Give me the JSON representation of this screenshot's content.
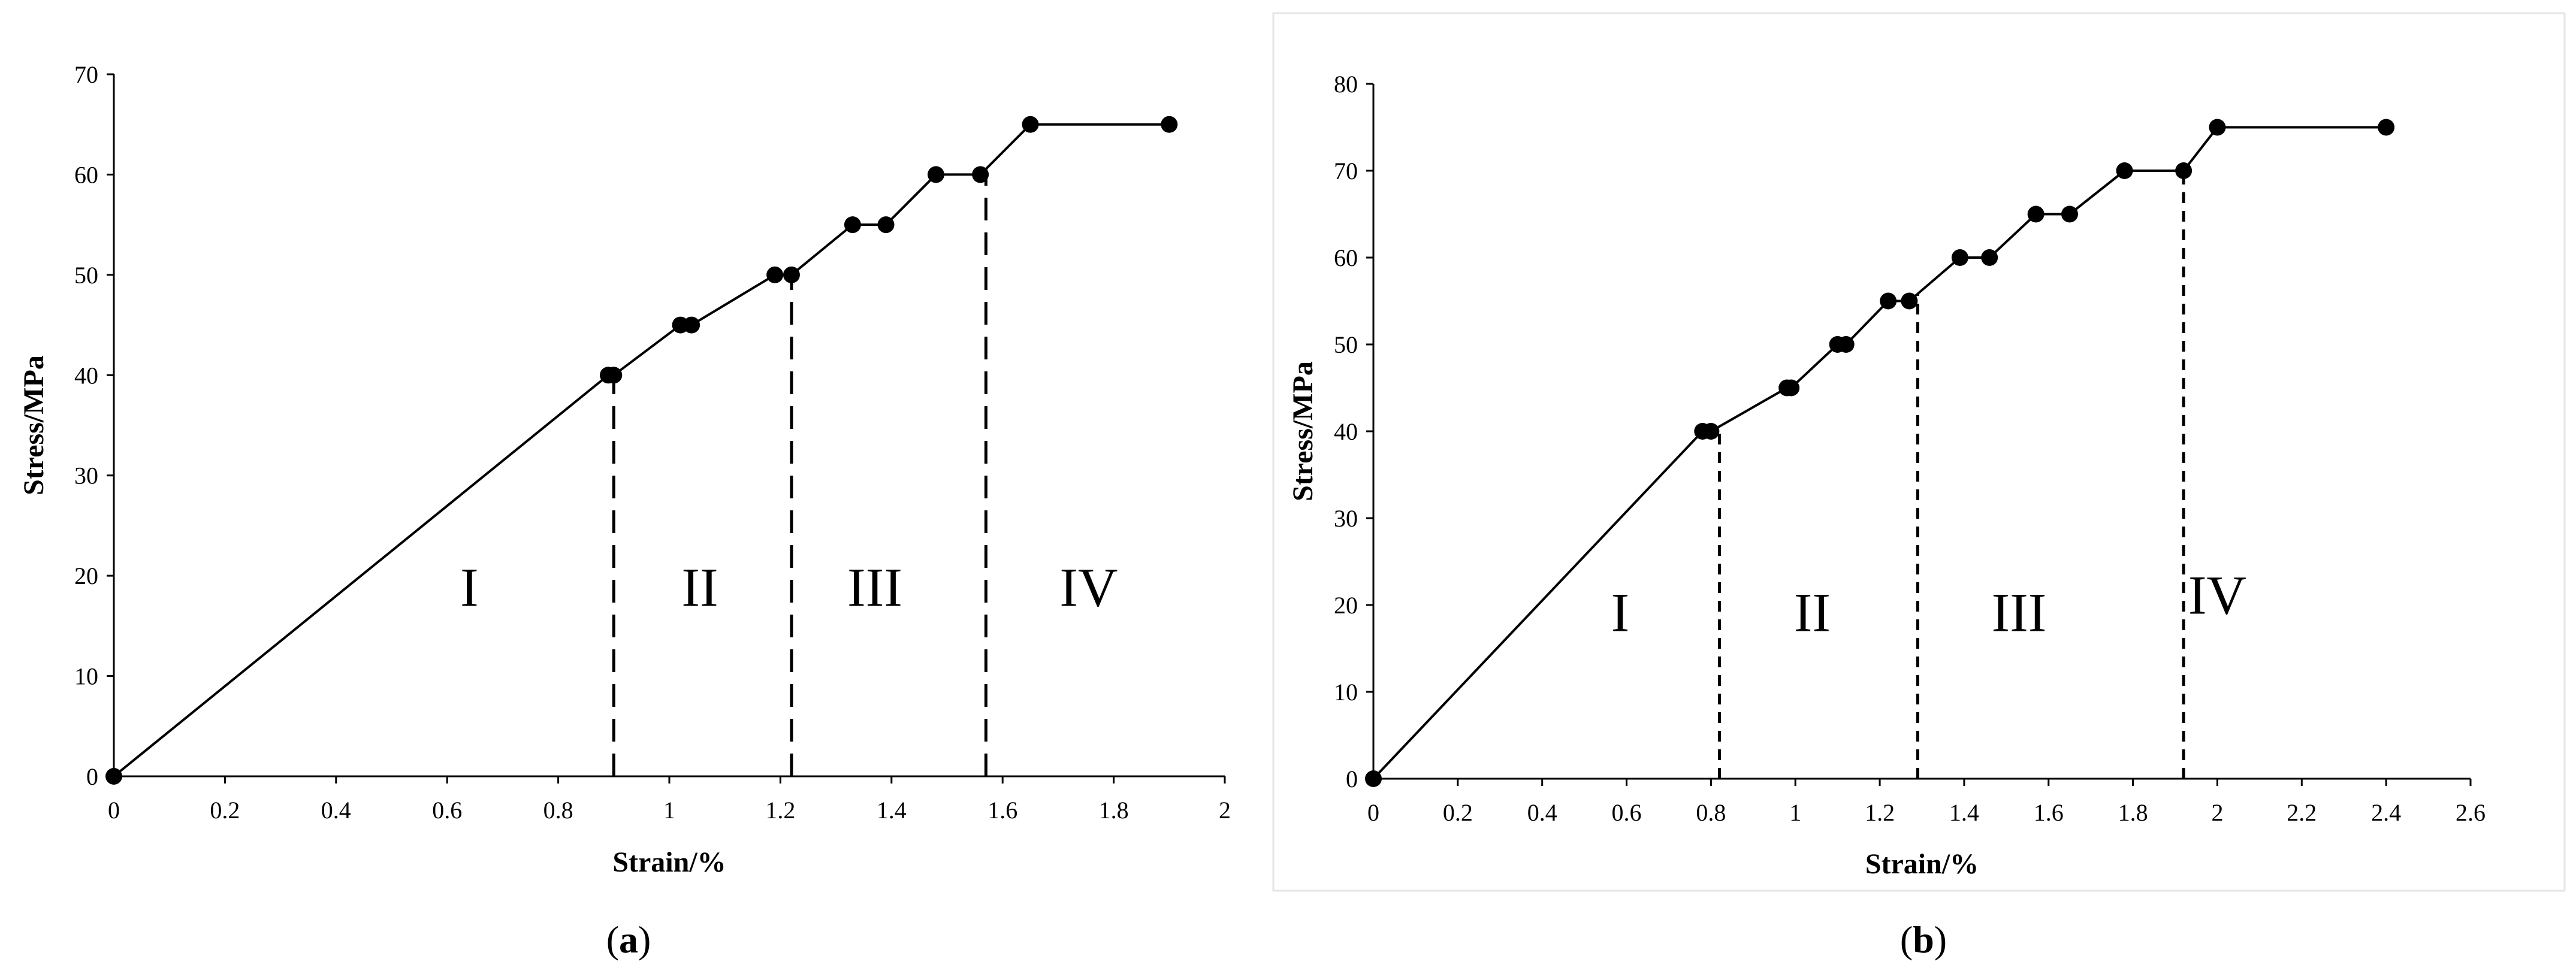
{
  "chart_data": [
    {
      "panel": "a",
      "type": "line",
      "caption_letter": "a",
      "xlabel": "Strain/%",
      "ylabel": "Stress/MPa",
      "xlim": [
        0,
        2
      ],
      "ylim": [
        0,
        70
      ],
      "xticks": [
        0,
        0.2,
        0.4,
        0.6,
        0.8,
        1,
        1.2,
        1.4,
        1.6,
        1.8,
        2
      ],
      "xtick_labels": [
        "0",
        "0.2",
        "0.4",
        "0.6",
        "0.8",
        "1",
        "1.2",
        "1.4",
        "1.6",
        "1.8",
        "2"
      ],
      "yticks": [
        0,
        10,
        20,
        30,
        40,
        50,
        60,
        70
      ],
      "ytick_labels": [
        "0",
        "10",
        "20",
        "30",
        "40",
        "50",
        "60",
        "70"
      ],
      "series": [
        {
          "x": [
            0,
            0.89,
            0.9,
            1.02,
            1.04,
            1.19,
            1.22,
            1.33,
            1.39,
            1.48,
            1.56,
            1.65,
            1.9
          ],
          "y": [
            0,
            40,
            40,
            45,
            45,
            50,
            50,
            55,
            55,
            60,
            60,
            65,
            65
          ]
        }
      ],
      "stage_boundaries": [
        0.9,
        1.22,
        1.57
      ],
      "stage_line_style": "long-dash",
      "regions": [
        {
          "label": "I",
          "x": 0.64,
          "y": 17
        },
        {
          "label": "II",
          "x": 1.055,
          "y": 17
        },
        {
          "label": "III",
          "x": 1.37,
          "y": 17
        },
        {
          "label": "IV",
          "x": 1.755,
          "y": 17
        }
      ],
      "grid": false,
      "color": "#000000"
    },
    {
      "panel": "b",
      "type": "line",
      "caption_letter": "b",
      "xlabel": "Strain/%",
      "ylabel": "Stress/MPa",
      "xlim": [
        0,
        2.6
      ],
      "ylim": [
        0,
        80
      ],
      "xticks": [
        0,
        0.2,
        0.4,
        0.6,
        0.8,
        1,
        1.2,
        1.4,
        1.6,
        1.8,
        2,
        2.2,
        2.4,
        2.6
      ],
      "xtick_labels": [
        "0",
        "0.2",
        "0.4",
        "0.6",
        "0.8",
        "1",
        "1.2",
        "1.4",
        "1.6",
        "1.8",
        "2",
        "2.2",
        "2.4",
        "2.6"
      ],
      "yticks": [
        0,
        10,
        20,
        30,
        40,
        50,
        60,
        70,
        80
      ],
      "ytick_labels": [
        "0",
        "10",
        "20",
        "30",
        "40",
        "50",
        "60",
        "70",
        "80"
      ],
      "series": [
        {
          "x": [
            0,
            0.78,
            0.8,
            0.98,
            0.99,
            1.1,
            1.12,
            1.22,
            1.27,
            1.39,
            1.46,
            1.57,
            1.65,
            1.78,
            1.92,
            2.0,
            2.4
          ],
          "y": [
            0,
            40,
            40,
            45,
            45,
            50,
            50,
            55,
            55,
            60,
            60,
            65,
            65,
            70,
            70,
            75,
            75
          ]
        }
      ],
      "stage_boundaries": [
        0.82,
        1.29,
        1.92
      ],
      "stage_line_style": "short-dash",
      "regions": [
        {
          "label": "I",
          "x": 0.585,
          "y": 17
        },
        {
          "label": "II",
          "x": 1.04,
          "y": 17
        },
        {
          "label": "III",
          "x": 1.53,
          "y": 17
        },
        {
          "label": "IV",
          "x": 2.0,
          "y": 19
        }
      ],
      "grid": false,
      "color": "#000000"
    }
  ]
}
